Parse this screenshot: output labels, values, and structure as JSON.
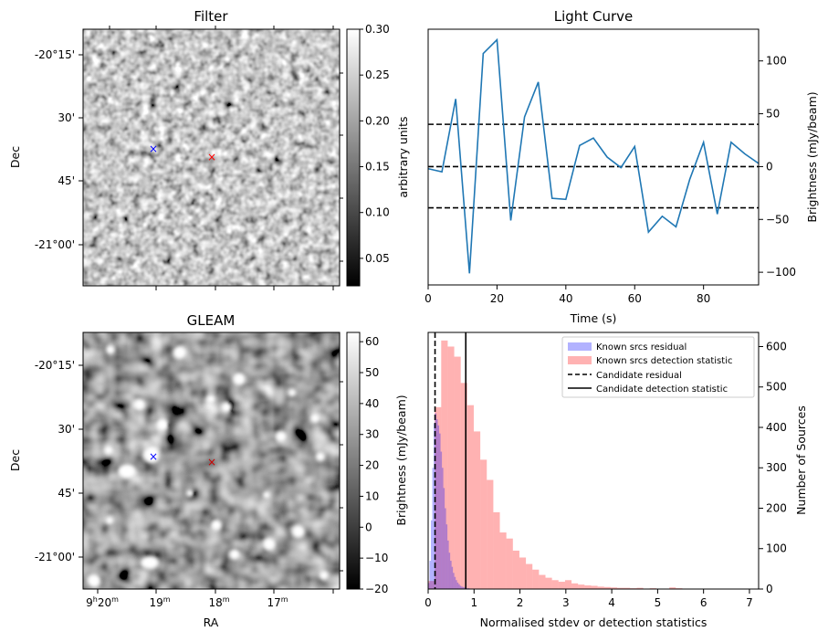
{
  "panels": {
    "filter": {
      "title": "Filter",
      "ylabel": "Dec",
      "yticks": [
        "-20°15'",
        "30'",
        "45'",
        "-21°00'"
      ],
      "colorbar": {
        "label": "arbitrary units",
        "ticks": [
          "0.30",
          "0.25",
          "0.20",
          "0.15",
          "0.10",
          "0.05"
        ],
        "range": [
          0.02,
          0.3
        ]
      },
      "markers": [
        {
          "symbol": "×",
          "color": "#0000ff"
        },
        {
          "symbol": "×",
          "color": "#ff0000"
        }
      ]
    },
    "gleam": {
      "title": "GLEAM",
      "ylabel": "Dec",
      "xlabel": "RA",
      "yticks": [
        "-20°15'",
        "30'",
        "45'",
        "-21°00'"
      ],
      "xticks": [
        {
          "main": "9",
          "sup1": "h",
          "mid": "20",
          "sup2": "m"
        },
        {
          "main": "19",
          "sup2": "m"
        },
        {
          "main": "18",
          "sup2": "m"
        },
        {
          "main": "17",
          "sup2": "m"
        }
      ],
      "colorbar": {
        "label": "Brightness (mJy/beam)",
        "ticks": [
          "60",
          "50",
          "40",
          "30",
          "20",
          "10",
          "0",
          "−10",
          "−20"
        ],
        "range": [
          -20,
          63
        ]
      },
      "markers": [
        {
          "symbol": "×",
          "color": "#0000ff"
        },
        {
          "symbol": "×",
          "color": "#ff0000"
        }
      ]
    }
  },
  "chart_data": [
    {
      "type": "line",
      "title": "Light Curve",
      "xlabel": "Time (s)",
      "ylabel": "Brightness (mJy/beam)",
      "xlim": [
        0,
        96
      ],
      "ylim": [
        -112,
        130
      ],
      "xticks": [
        0,
        20,
        40,
        60,
        80
      ],
      "yticks": [
        -100,
        -50,
        0,
        50,
        100
      ],
      "series": [
        {
          "color": "#1f77b4",
          "x": [
            0,
            4,
            8,
            12,
            16,
            20,
            24,
            28,
            32,
            36,
            40,
            44,
            48,
            52,
            56,
            60,
            64,
            68,
            72,
            76,
            80,
            84,
            88,
            92,
            96
          ],
          "y": [
            -2,
            -5,
            64,
            -101,
            107,
            120,
            -51,
            47,
            80,
            -30,
            -31,
            20,
            27,
            9,
            -1,
            19,
            -62,
            -47,
            -57,
            -12,
            23,
            -45,
            23,
            12,
            3
          ]
        }
      ],
      "hlines": [
        {
          "y": 40,
          "style": "dashed"
        },
        {
          "y": 0,
          "style": "dashed"
        },
        {
          "y": -39,
          "style": "dashed"
        }
      ]
    },
    {
      "type": "histogram",
      "xlabel": "Normalised stdev or detection statistics",
      "ylabel": "Number of Sources",
      "left_axis_label": "Brightness (mJy/beam)",
      "xlim": [
        0,
        7.2
      ],
      "ylim": [
        0,
        635
      ],
      "xticks": [
        0,
        1,
        2,
        3,
        4,
        5,
        6,
        7
      ],
      "yticks": [
        0,
        100,
        200,
        300,
        400,
        500,
        600
      ],
      "legend_position": "upper-right",
      "series": [
        {
          "name": "Known srcs residual",
          "color": "#0000ff",
          "alpha": 0.3,
          "bin_start": 0,
          "bin_width": 0.03,
          "counts": [
            15,
            70,
            170,
            300,
            410,
            435,
            420,
            405,
            385,
            340,
            300,
            250,
            200,
            160,
            120,
            90,
            70,
            55,
            40,
            30,
            22,
            16,
            12,
            8,
            6,
            5,
            4,
            3,
            2,
            2,
            1,
            1
          ]
        },
        {
          "name": "Known srcs detection statistic",
          "color": "#ff0000",
          "alpha": 0.3,
          "bin_start": 0,
          "bin_width": 0.142,
          "counts": [
            20,
            450,
            615,
            600,
            575,
            510,
            455,
            390,
            320,
            270,
            190,
            140,
            125,
            95,
            78,
            62,
            48,
            35,
            28,
            22,
            18,
            22,
            14,
            11,
            9,
            8,
            6,
            5,
            4,
            3,
            3,
            2,
            3,
            1,
            2,
            1,
            1,
            4,
            2,
            1,
            1,
            1,
            1,
            0,
            1,
            0,
            1,
            0,
            0,
            1
          ]
        }
      ],
      "vlines": [
        {
          "name": "Candidate residual",
          "x": 0.15,
          "style": "dashed"
        },
        {
          "name": "Candidate detection statistic",
          "x": 0.82,
          "style": "solid"
        }
      ]
    }
  ]
}
